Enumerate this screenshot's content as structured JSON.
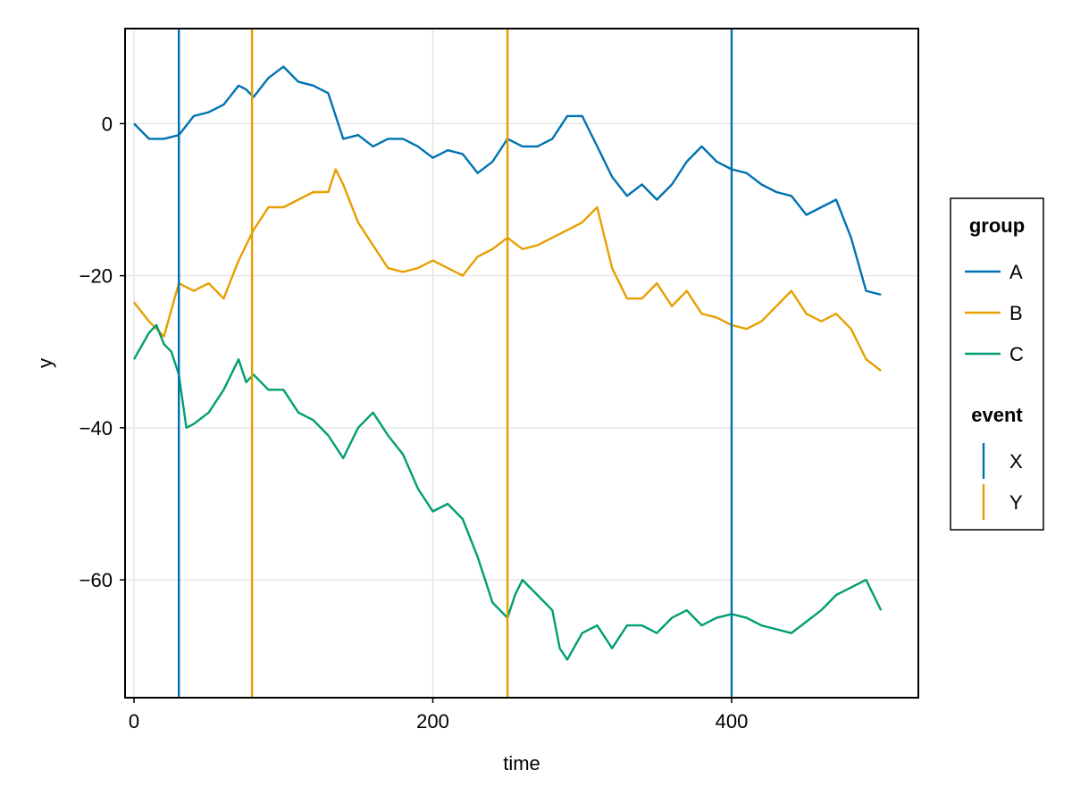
{
  "chart_data": {
    "type": "line",
    "title": "",
    "xlabel": "time",
    "ylabel": "y",
    "xlim": [
      -6,
      525
    ],
    "ylim": [
      -75.5,
      12.5
    ],
    "x_ticks": [
      0,
      200,
      400
    ],
    "y_ticks": [
      0,
      -20,
      -40,
      -60
    ],
    "grid": true,
    "legend_placement": "right",
    "legends": [
      {
        "title": "group",
        "entries": [
          "A",
          "B",
          "C"
        ]
      },
      {
        "title": "event",
        "entries": [
          "X",
          "Y"
        ]
      }
    ],
    "colors": {
      "A": "#0072B2",
      "B": "#E69F00",
      "C": "#009E73",
      "X": "#0072B2",
      "Y": "#E69F00"
    },
    "series": [
      {
        "name": "A",
        "x": [
          0,
          10,
          20,
          30,
          40,
          50,
          60,
          70,
          75,
          80,
          90,
          100,
          110,
          120,
          130,
          140,
          150,
          160,
          170,
          180,
          190,
          200,
          210,
          220,
          230,
          240,
          250,
          260,
          270,
          280,
          290,
          300,
          310,
          320,
          330,
          340,
          350,
          360,
          370,
          380,
          390,
          400,
          410,
          420,
          430,
          440,
          450,
          460,
          470,
          480,
          490,
          500
        ],
        "y": [
          0,
          -2,
          -2,
          -1.5,
          1,
          1.5,
          2.5,
          5,
          4.5,
          3.5,
          6,
          7.5,
          5.5,
          5,
          4,
          -2,
          -1.5,
          -3,
          -2,
          -2,
          -3,
          -4.5,
          -3.5,
          -4,
          -6.5,
          -5,
          -2,
          -3,
          -3,
          -2,
          1,
          1,
          -3,
          -7,
          -9.5,
          -8,
          -10,
          -8,
          -5,
          -3,
          -5,
          -6,
          -6.5,
          -8,
          -9,
          -9.5,
          -12,
          -11,
          -10,
          -15,
          -22,
          -22.5
        ]
      },
      {
        "name": "B",
        "x": [
          0,
          10,
          20,
          30,
          40,
          50,
          60,
          70,
          80,
          90,
          100,
          110,
          120,
          130,
          135,
          140,
          150,
          160,
          170,
          180,
          190,
          200,
          210,
          220,
          230,
          240,
          250,
          260,
          270,
          280,
          290,
          300,
          310,
          320,
          330,
          340,
          350,
          360,
          370,
          380,
          390,
          400,
          410,
          420,
          430,
          440,
          450,
          460,
          470,
          480,
          490,
          500
        ],
        "y": [
          -23.5,
          -26,
          -28,
          -21,
          -22,
          -21,
          -23,
          -18,
          -14,
          -11,
          -11,
          -10,
          -9,
          -9,
          -6,
          -8,
          -13,
          -16,
          -19,
          -19.5,
          -19,
          -18,
          -19,
          -20,
          -17.5,
          -16.5,
          -15,
          -16.5,
          -16,
          -15,
          -14,
          -13,
          -11,
          -19,
          -23,
          -23,
          -21,
          -24,
          -22,
          -25,
          -25.5,
          -26.5,
          -27,
          -26,
          -24,
          -22,
          -25,
          -26,
          -25,
          -27,
          -31,
          -32.5
        ]
      },
      {
        "name": "C",
        "x": [
          0,
          10,
          15,
          20,
          25,
          30,
          35,
          40,
          50,
          60,
          70,
          75,
          80,
          90,
          100,
          110,
          120,
          130,
          140,
          150,
          160,
          170,
          180,
          190,
          200,
          210,
          220,
          230,
          240,
          250,
          255,
          260,
          270,
          280,
          285,
          290,
          300,
          310,
          320,
          330,
          340,
          350,
          360,
          370,
          380,
          390,
          400,
          410,
          420,
          430,
          440,
          450,
          460,
          470,
          480,
          490,
          500
        ],
        "y": [
          -31,
          -27.5,
          -26.5,
          -29,
          -30,
          -33,
          -40,
          -39.5,
          -38,
          -35,
          -31,
          -34,
          -33,
          -35,
          -35,
          -38,
          -39,
          -41,
          -44,
          -40,
          -38,
          -41,
          -43.5,
          -48,
          -51,
          -50,
          -52,
          -57,
          -63,
          -65,
          -62,
          -60,
          -62,
          -64,
          -69,
          -70.5,
          -67,
          -66,
          -69,
          -66,
          -66,
          -67,
          -65,
          -64,
          -66,
          -65,
          -64.5,
          -65,
          -66,
          -66.5,
          -67,
          -65.5,
          -64,
          -62,
          -61,
          -60,
          -64
        ]
      }
    ],
    "events": [
      {
        "name": "X",
        "x": [
          30,
          400
        ]
      },
      {
        "name": "Y",
        "x": [
          79,
          250
        ]
      }
    ]
  }
}
